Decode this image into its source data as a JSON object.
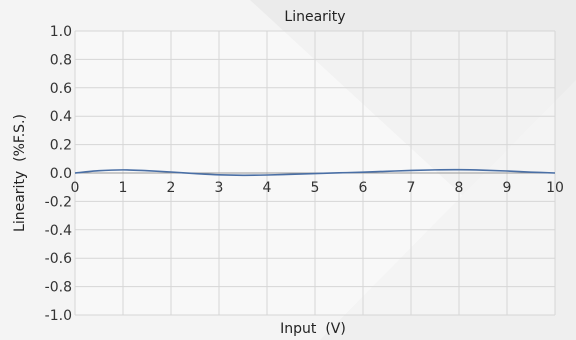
{
  "chart_data": {
    "type": "line",
    "title": "Linearity",
    "xlabel": "Input  (V)",
    "ylabel": "Linearity  (%F.S.)",
    "xlim": [
      0,
      10
    ],
    "ylim": [
      -1.0,
      1.0
    ],
    "x_ticks": [
      "0",
      "1",
      "2",
      "3",
      "4",
      "5",
      "6",
      "7",
      "8",
      "9",
      "10"
    ],
    "y_ticks": [
      "1.0",
      "0.8",
      "0.6",
      "0.4",
      "0.2",
      "0.0",
      "-0.2",
      "-0.4",
      "-0.6",
      "-0.8",
      "-1.0"
    ],
    "grid": true,
    "series": [
      {
        "color": "#4a6fa5",
        "x": [
          0,
          0.5,
          1,
          1.5,
          2,
          2.5,
          3,
          3.5,
          4,
          4.5,
          5,
          5.5,
          6,
          6.5,
          7,
          7.5,
          8,
          8.5,
          9,
          9.5,
          10
        ],
        "y": [
          0.0,
          0.016,
          0.022,
          0.016,
          0.007,
          -0.004,
          -0.013,
          -0.016,
          -0.014,
          -0.009,
          -0.004,
          0.001,
          0.006,
          0.012,
          0.018,
          0.022,
          0.023,
          0.02,
          0.014,
          0.006,
          0.0
        ]
      }
    ]
  }
}
